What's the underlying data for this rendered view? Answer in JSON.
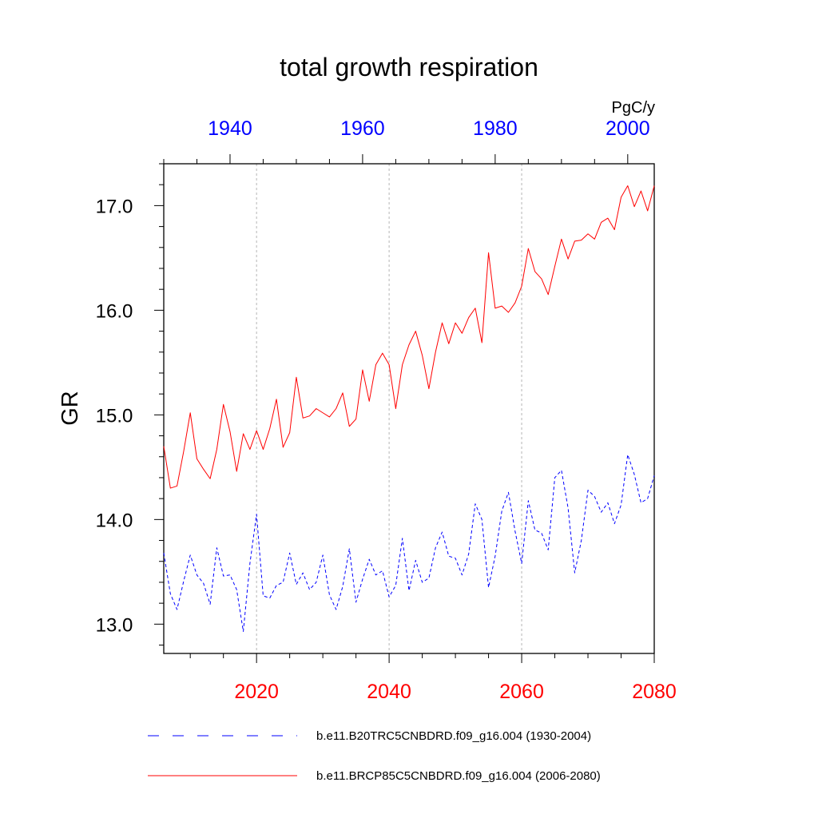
{
  "chart_data": {
    "type": "line",
    "title": "total growth respiration",
    "ylabel": "GR",
    "units": "PgC/y",
    "ylim": [
      12.72,
      17.4
    ],
    "yticks": [
      13.0,
      14.0,
      15.0,
      16.0,
      17.0
    ],
    "ytick_labels": [
      "13.0",
      "14.0",
      "15.0",
      "16.0",
      "17.0"
    ],
    "bottom_axis": {
      "xlim": [
        2006,
        2080
      ],
      "ticks": [
        2020,
        2040,
        2060,
        2080
      ],
      "tick_labels": [
        "2020",
        "2040",
        "2060",
        "2080"
      ],
      "color": "#ff0000"
    },
    "top_axis": {
      "xlim": [
        1930,
        2004
      ],
      "ticks": [
        1940,
        1960,
        1980,
        2000
      ],
      "tick_labels": [
        "1940",
        "1960",
        "1980",
        "2000"
      ],
      "color": "#0000ff"
    },
    "grid": "vertical dotted at bottom-axis major ticks",
    "legend_position": "bottom",
    "series": [
      {
        "name": "b.e11.B20TRC5CNBDRD.f09_g16.004 (1930-2004)",
        "axis": "top",
        "color": "#0000ff",
        "dash": "dashed",
        "x_start": 1930,
        "values": [
          13.68,
          13.29,
          13.14,
          13.41,
          13.66,
          13.47,
          13.39,
          13.19,
          13.73,
          13.46,
          13.47,
          13.33,
          12.93,
          13.58,
          14.05,
          13.27,
          13.25,
          13.37,
          13.4,
          13.68,
          13.38,
          13.49,
          13.33,
          13.4,
          13.66,
          13.28,
          13.14,
          13.36,
          13.72,
          13.21,
          13.43,
          13.62,
          13.47,
          13.51,
          13.26,
          13.37,
          13.82,
          13.32,
          13.61,
          13.4,
          13.44,
          13.73,
          13.88,
          13.65,
          13.63,
          13.47,
          13.67,
          14.15,
          14.0,
          13.35,
          13.65,
          14.08,
          14.26,
          13.89,
          13.58,
          14.18,
          13.9,
          13.87,
          13.71,
          14.4,
          14.47,
          14.11,
          13.49,
          13.8,
          14.28,
          14.22,
          14.07,
          14.16,
          13.96,
          14.14,
          14.62,
          14.43,
          14.16,
          14.2,
          14.42
        ]
      },
      {
        "name": "b.e11.BRCP85C5CNBDRD.f09_g16.004 (2006-2080)",
        "axis": "bottom",
        "color": "#ff0000",
        "dash": "solid",
        "x_start": 2006,
        "values": [
          14.7,
          14.3,
          14.32,
          14.65,
          15.02,
          14.58,
          14.48,
          14.39,
          14.67,
          15.1,
          14.84,
          14.46,
          14.82,
          14.67,
          14.85,
          14.67,
          14.87,
          15.15,
          14.69,
          14.83,
          15.36,
          14.97,
          14.99,
          15.06,
          15.02,
          14.98,
          15.06,
          15.21,
          14.89,
          14.96,
          15.43,
          15.13,
          15.48,
          15.59,
          15.48,
          15.06,
          15.48,
          15.67,
          15.8,
          15.57,
          15.25,
          15.6,
          15.88,
          15.68,
          15.88,
          15.78,
          15.93,
          16.02,
          15.69,
          16.55,
          16.02,
          16.04,
          15.98,
          16.07,
          16.23,
          16.59,
          16.37,
          16.3,
          16.15,
          16.42,
          16.68,
          16.49,
          16.66,
          16.67,
          16.73,
          16.68,
          16.84,
          16.88,
          16.77,
          17.08,
          17.19,
          16.99,
          17.14,
          16.95,
          17.19
        ]
      }
    ]
  }
}
